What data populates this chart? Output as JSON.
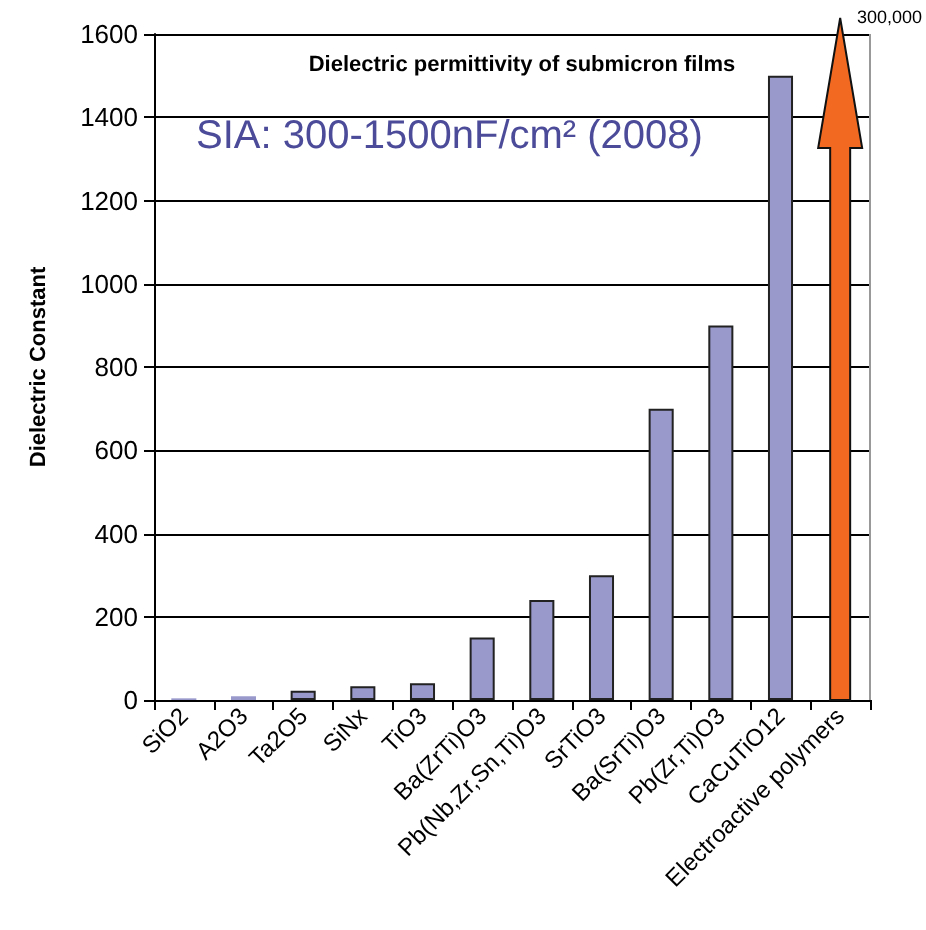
{
  "chart_data": {
    "type": "bar",
    "title": "Dielectric permittivity of submicron films",
    "ylabel": "Dielectric Constant",
    "categories": [
      "SiO2",
      "A2O3",
      "Ta2O5",
      "SiNx",
      "TiO3",
      "Ba(ZrTi)O3",
      "Pb(Nb,Zr,Sn,Ti)O3",
      "SrTiO3",
      "Ba(SrTi)O3",
      "Pb(Zr,Ti)O3",
      "CaCuTiO12",
      "Electroactive polymers"
    ],
    "values": [
      4,
      9,
      22,
      33,
      40,
      150,
      240,
      300,
      700,
      900,
      1500,
      null
    ],
    "colors": [
      "#9999cc",
      "#9999cc",
      "#9999cc",
      "#9999cc",
      "#9999cc",
      "#9999cc",
      "#9999cc",
      "#9999cc",
      "#9999cc",
      "#9999cc",
      "#9999cc",
      "#f26a21"
    ],
    "annotations": [
      "SIA: 300-1500nF/cm² (2008)",
      "300,000"
    ],
    "ylim": [
      0,
      1600
    ],
    "yticks": [
      0,
      200,
      400,
      600,
      800,
      1000,
      1200,
      1400,
      1600
    ],
    "grid": "y"
  }
}
